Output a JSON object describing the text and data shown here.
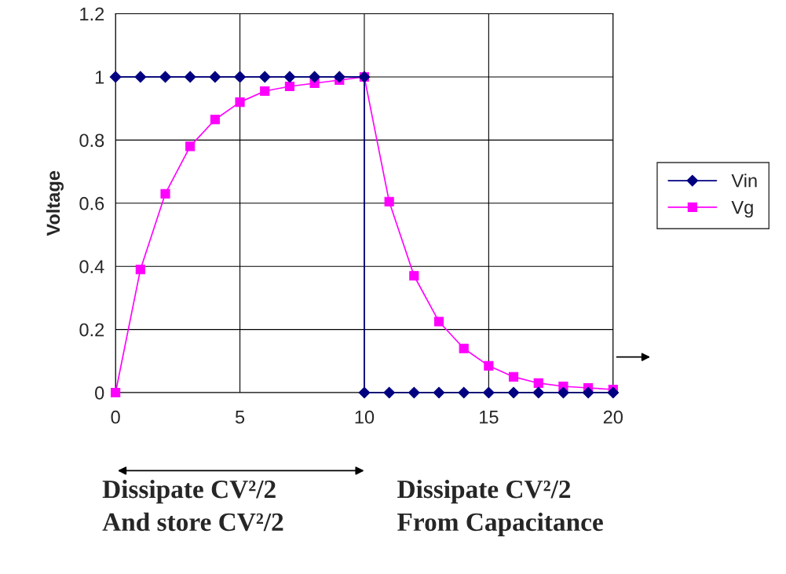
{
  "chart_data": {
    "type": "line",
    "ylabel": "Voltage",
    "xlim": [
      0,
      20
    ],
    "xticks": [
      0,
      5,
      10,
      15,
      20
    ],
    "ylim": [
      0,
      1.2
    ],
    "yticks": [
      0,
      0.2,
      0.4,
      0.6,
      0.8,
      1,
      1.2
    ],
    "grid": true,
    "legend": "right",
    "series": [
      {
        "name": "Vin",
        "color": "#000080",
        "marker": "diamond",
        "x": [
          0,
          1,
          2,
          3,
          4,
          5,
          6,
          7,
          8,
          9,
          10,
          10,
          11,
          12,
          13,
          14,
          15,
          16,
          17,
          18,
          19,
          20
        ],
        "values": [
          1,
          1,
          1,
          1,
          1,
          1,
          1,
          1,
          1,
          1,
          1,
          0,
          0,
          0,
          0,
          0,
          0,
          0,
          0,
          0,
          0,
          0
        ]
      },
      {
        "name": "Vg",
        "color": "#ff00ff",
        "marker": "square",
        "x": [
          0,
          1,
          2,
          3,
          4,
          5,
          6,
          7,
          8,
          9,
          10,
          11,
          12,
          13,
          14,
          15,
          16,
          17,
          18,
          19,
          20
        ],
        "values": [
          0,
          0.39,
          0.63,
          0.78,
          0.865,
          0.92,
          0.955,
          0.97,
          0.98,
          0.99,
          1,
          0.605,
          0.37,
          0.225,
          0.14,
          0.085,
          0.05,
          0.03,
          0.02,
          0.015,
          0.01
        ]
      }
    ],
    "annotations": [
      "Dissipate CV²/2\nAnd store CV²/2",
      "Dissipate CV²/2\nFrom Capacitance"
    ]
  }
}
